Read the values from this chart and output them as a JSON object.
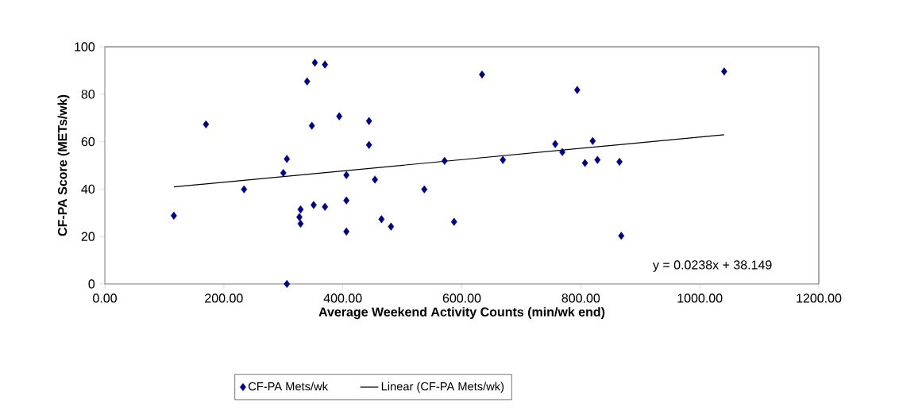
{
  "chart_data": {
    "type": "scatter",
    "xlabel": "Average Weekend Activity Counts (min/wk end)",
    "ylabel": "CF-PA Score (METs/wk)",
    "xlim": [
      0,
      1200
    ],
    "xticks": [
      {
        "value": 0,
        "label": "0.00"
      },
      {
        "value": 200,
        "label": "200.00"
      },
      {
        "value": 400,
        "label": "400.00"
      },
      {
        "value": 600,
        "label": "600.00"
      },
      {
        "value": 800,
        "label": "800.00"
      },
      {
        "value": 1000,
        "label": "1000.00"
      },
      {
        "value": 1200,
        "label": "1200.00"
      }
    ],
    "ylim": [
      0,
      100
    ],
    "yticks": [
      0,
      20,
      40,
      60,
      80,
      100
    ],
    "grid": false,
    "legend": "bottom",
    "series": [
      {
        "name": "CF-PA Mets/wk",
        "type": "scatter",
        "marker": "diamond",
        "color": "#000080",
        "x": [
          116,
          170,
          234,
          300,
          306,
          306,
          329,
          327,
          329,
          340,
          348,
          351,
          353,
          370,
          370,
          394,
          406,
          406,
          406,
          444,
          444,
          454,
          465,
          481,
          537,
          571,
          587,
          634,
          669,
          757,
          769,
          794,
          807,
          820,
          828,
          865,
          868,
          1041
        ],
        "values": [
          28.8,
          67.3,
          39.9,
          46.8,
          52.7,
          0,
          31.4,
          28.2,
          25.4,
          85.4,
          66.7,
          33.3,
          93.3,
          92.5,
          32.5,
          70.7,
          45.9,
          35.2,
          22.1,
          68.7,
          58.6,
          44.0,
          27.3,
          24.2,
          39.9,
          51.9,
          26.2,
          88.3,
          52.3,
          59.0,
          55.6,
          81.8,
          51.0,
          60.3,
          52.3,
          51.5,
          20.3,
          89.6
        ]
      },
      {
        "name": "Linear (CF-PA Mets/wk)",
        "type": "line",
        "marker": "none",
        "line_style": "solid",
        "color": "#000000",
        "x": [
          116,
          1041
        ],
        "values": [
          40.9,
          62.9
        ]
      }
    ],
    "annotations": [
      "y = 0.0238x + 38.149"
    ]
  }
}
